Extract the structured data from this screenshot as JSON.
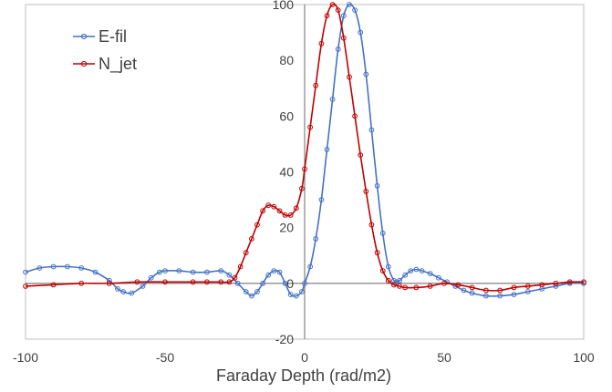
{
  "chart_data": {
    "type": "line",
    "title": "",
    "xlabel": "Faraday Depth (rad/m2)",
    "ylabel": "",
    "xlim": [
      -100,
      100
    ],
    "ylim": [
      -20,
      100
    ],
    "xticks": [
      -100,
      -50,
      0,
      50,
      100
    ],
    "yticks": [
      -20,
      0,
      20,
      40,
      60,
      80,
      100
    ],
    "grid": false,
    "legend_position": "top-left",
    "series": [
      {
        "name": "E-fil",
        "color": "#4472C4",
        "marker": "circle",
        "x": [
          -100,
          -95,
          -90,
          -85,
          -80,
          -75,
          -70,
          -67,
          -65,
          -62,
          -58,
          -55,
          -52,
          -50,
          -45,
          -40,
          -35,
          -30,
          -27,
          -24,
          -21,
          -19,
          -17,
          -15,
          -13,
          -11,
          -9,
          -7,
          -5,
          -3,
          -1,
          0,
          2,
          4,
          6,
          8,
          10,
          12,
          14,
          16,
          18,
          20,
          22,
          24,
          26,
          28,
          30,
          32,
          33,
          34,
          36,
          38,
          40,
          42,
          45,
          48,
          51,
          54,
          57,
          60,
          65,
          70,
          75,
          80,
          85,
          90,
          95,
          100
        ],
        "y": [
          4,
          5.5,
          6,
          6,
          5.5,
          4,
          1,
          -2,
          -3,
          -3.5,
          -1,
          2,
          4,
          4.5,
          4.5,
          4,
          4,
          4.5,
          3,
          0,
          -3,
          -4.5,
          -3,
          0,
          3,
          4.5,
          4,
          0,
          -4,
          -4.5,
          -3,
          0,
          6,
          16,
          30,
          48,
          66,
          84,
          96,
          100,
          98,
          90,
          75,
          55,
          35,
          18,
          6,
          1,
          0.5,
          1,
          3,
          4.5,
          5,
          4.5,
          3.5,
          2,
          0.5,
          -1,
          -2.5,
          -3.5,
          -4.5,
          -4.5,
          -4,
          -3,
          -2,
          -1,
          0,
          0
        ]
      },
      {
        "name": "N_jet",
        "color": "#C00000",
        "marker": "circle",
        "x": [
          -100,
          -90,
          -80,
          -70,
          -60,
          -50,
          -40,
          -35,
          -30,
          -27,
          -25,
          -23,
          -21,
          -19,
          -17,
          -15,
          -13,
          -11,
          -9,
          -7,
          -5,
          -3,
          -1,
          0,
          2,
          4,
          6,
          8,
          10,
          12,
          14,
          16,
          18,
          20,
          22,
          24,
          26,
          28,
          30,
          32,
          34,
          36,
          40,
          45,
          50,
          55,
          60,
          65,
          70,
          75,
          80,
          85,
          90,
          95,
          100
        ],
        "y": [
          -1,
          -0.5,
          0,
          0,
          0.5,
          0.5,
          0.5,
          0.5,
          0.5,
          0.5,
          2,
          6,
          11,
          16,
          21,
          26,
          28,
          27.5,
          26,
          24.5,
          24.5,
          27,
          34,
          41,
          56,
          71,
          86,
          96,
          100,
          98,
          88,
          74,
          60,
          46,
          33,
          21,
          11,
          4.5,
          1,
          -0.5,
          -1,
          -1.5,
          -1.5,
          -1,
          0,
          -0.5,
          -1.5,
          -2.5,
          -2.5,
          -1.5,
          -1,
          -0.5,
          0,
          0.5,
          0.5
        ]
      }
    ]
  }
}
